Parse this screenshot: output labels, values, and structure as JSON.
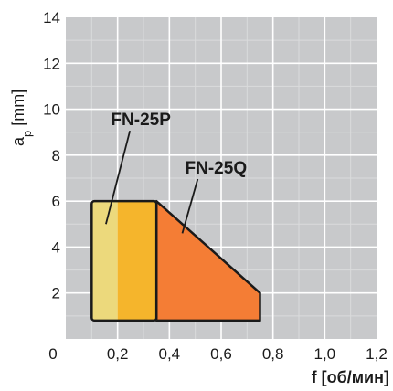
{
  "chart_data": {
    "type": "area",
    "title": "",
    "xlabel": "f [об/мин]",
    "ylabel_main": "a",
    "ylabel_sub": "p",
    "ylabel_unit": "[mm]",
    "xlim": [
      0,
      1.2
    ],
    "ylim": [
      0,
      14
    ],
    "x_major_ticks": [
      0,
      0.2,
      0.4,
      0.6,
      0.8,
      1.0,
      1.2
    ],
    "x_tick_labels": [
      "0",
      "0,2",
      "0,4",
      "0,6",
      "0,8",
      "1,0",
      "1,2"
    ],
    "y_major_ticks": [
      0,
      2,
      4,
      6,
      8,
      10,
      12,
      14
    ],
    "y_tick_labels": [
      "0",
      "2",
      "4",
      "6",
      "8",
      "10",
      "12",
      "14"
    ],
    "grid": true,
    "minor_step": {
      "x": 0.1,
      "y": 1
    },
    "regions": [
      {
        "name": "FN-25P",
        "color_left": "#ecd97c",
        "color_right": "#f5b52c",
        "split_x": 0.2,
        "polygon": [
          [
            0.1,
            0.8
          ],
          [
            0.1,
            6.0
          ],
          [
            0.35,
            6.0
          ],
          [
            0.35,
            0.8
          ]
        ]
      },
      {
        "name": "FN-25Q",
        "color": "#f47d35",
        "polygon": [
          [
            0.35,
            0.8
          ],
          [
            0.35,
            6.0
          ],
          [
            0.75,
            2.0
          ],
          [
            0.75,
            0.8
          ]
        ]
      }
    ],
    "labels": [
      {
        "text": "FN-25P",
        "anchor": [
          0.29,
          9.3
        ],
        "pointer_to": [
          0.155,
          5.0
        ]
      },
      {
        "text": "FN-25Q",
        "anchor": [
          0.58,
          7.2
        ],
        "pointer_to": [
          0.45,
          4.6
        ]
      }
    ],
    "colors": {
      "plot_bg": "#c8c9cb",
      "grid_minor": "#dadbdc",
      "grid_major": "#ffffff",
      "outline": "#1a1a1a"
    }
  }
}
